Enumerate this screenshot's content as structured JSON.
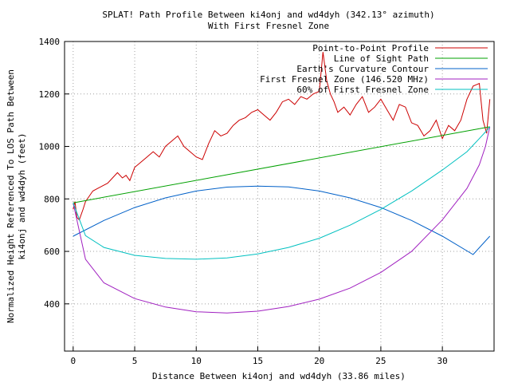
{
  "chart_data": {
    "type": "line",
    "title": "SPLAT! Path Profile Between ki4onj and wd4dyh (342.13° azimuth)",
    "subtitle": "With First Fresnel Zone",
    "xlabel": "Distance Between ki4onj and wd4dyh (33.86 miles)",
    "ylabel": "Normalized Height Referenced To LOS Path Between",
    "ylabel2": "ki4onj and wd4dyh (feet)",
    "xlim": [
      -0.7,
      34.2
    ],
    "ylim": [
      220,
      1400
    ],
    "x_ticks": [
      0,
      5,
      10,
      15,
      20,
      25,
      30
    ],
    "y_ticks": [
      400,
      600,
      800,
      1000,
      1200,
      1400
    ],
    "grid": true,
    "legend_position": "top-right",
    "series": [
      {
        "name": "Point-to-Point Profile",
        "color": "#cc0000",
        "x": [
          0,
          0.15,
          0.3,
          0.5,
          0.8,
          1.0,
          1.3,
          1.6,
          2.0,
          2.4,
          2.8,
          3.2,
          3.6,
          4.0,
          4.3,
          4.6,
          5.0,
          5.5,
          6.0,
          6.5,
          7.0,
          7.5,
          8.0,
          8.5,
          9.0,
          9.5,
          10.0,
          10.5,
          11.0,
          11.5,
          12.0,
          12.5,
          13.0,
          13.5,
          14.0,
          14.5,
          15.0,
          15.5,
          16.0,
          16.5,
          17.0,
          17.5,
          18.0,
          18.5,
          19.0,
          19.5,
          20.0,
          20.3,
          20.6,
          20.9,
          21.2,
          21.5,
          22.0,
          22.5,
          23.0,
          23.5,
          24.0,
          24.5,
          25.0,
          25.5,
          26.0,
          26.5,
          27.0,
          27.5,
          28.0,
          28.5,
          29.0,
          29.5,
          30.0,
          30.5,
          31.0,
          31.5,
          32.0,
          32.5,
          33.0,
          33.3,
          33.6,
          33.86
        ],
        "values": [
          760,
          790,
          730,
          720,
          760,
          790,
          810,
          830,
          840,
          850,
          860,
          880,
          900,
          880,
          890,
          870,
          920,
          940,
          960,
          980,
          960,
          1000,
          1020,
          1040,
          1000,
          980,
          960,
          950,
          1010,
          1060,
          1040,
          1050,
          1080,
          1100,
          1110,
          1130,
          1140,
          1120,
          1100,
          1130,
          1170,
          1180,
          1160,
          1190,
          1180,
          1200,
          1210,
          1360,
          1250,
          1200,
          1170,
          1130,
          1150,
          1120,
          1160,
          1190,
          1130,
          1150,
          1180,
          1140,
          1100,
          1160,
          1150,
          1090,
          1080,
          1040,
          1060,
          1100,
          1030,
          1080,
          1060,
          1100,
          1180,
          1230,
          1240,
          1100,
          1050,
          1180
        ]
      },
      {
        "name": "Line of Sight Path",
        "color": "#00a000",
        "x": [
          0,
          33.86
        ],
        "values": [
          785,
          1075
        ]
      },
      {
        "name": "Earth's Curvature Contour",
        "color": "#0060c8",
        "x": [
          0,
          2.5,
          5,
          7.5,
          10,
          12.5,
          15,
          17.5,
          20,
          22.5,
          25,
          27.5,
          30,
          32.5,
          33.86
        ],
        "values": [
          658,
          718,
          767,
          804,
          830,
          845,
          849,
          846,
          830,
          804,
          767,
          718,
          658,
          588,
          658
        ]
      },
      {
        "name": "First Fresnel Zone (146.520 MHz)",
        "color": "#a020c0",
        "x": [
          0,
          1,
          2.5,
          5,
          7.5,
          10,
          12.5,
          15,
          17.5,
          20,
          22.5,
          25,
          27.5,
          30,
          32,
          33,
          33.5,
          33.86
        ],
        "values": [
          785,
          570,
          480,
          420,
          388,
          370,
          365,
          372,
          390,
          418,
          460,
          520,
          600,
          720,
          840,
          930,
          1000,
          1075
        ]
      },
      {
        "name": "60% of First Fresnel Zone",
        "color": "#00c0c0",
        "x": [
          0,
          1,
          2.5,
          5,
          7.5,
          10,
          12.5,
          15,
          17.5,
          20,
          22.5,
          25,
          27.5,
          30,
          32,
          33,
          33.5,
          33.86
        ],
        "values": [
          785,
          660,
          615,
          585,
          573,
          570,
          575,
          590,
          615,
          650,
          700,
          760,
          830,
          910,
          980,
          1030,
          1055,
          1075
        ]
      }
    ]
  }
}
